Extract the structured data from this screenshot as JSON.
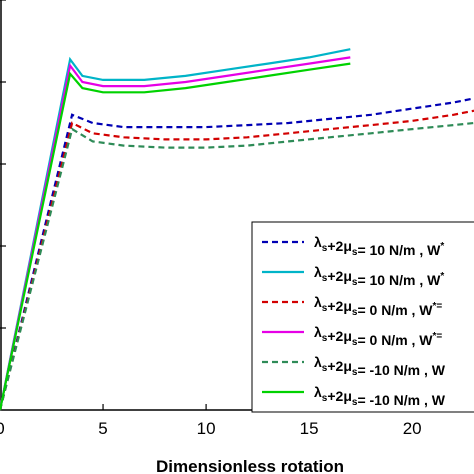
{
  "chart_data": {
    "type": "line",
    "title": "",
    "xlabel": "Dimensionless rotation",
    "ylabel": "",
    "xlim": [
      0,
      23
    ],
    "ylim": [
      0,
      1
    ],
    "grid": false,
    "legend_position": "right",
    "x_ticks": [
      {
        "value": 0,
        "label": "0"
      },
      {
        "value": 5,
        "label": "5"
      },
      {
        "value": 10,
        "label": "10"
      },
      {
        "value": 15,
        "label": "15"
      },
      {
        "value": 20,
        "label": "20"
      }
    ],
    "series": [
      {
        "name": "λs+2μs = 10 N/m , W*",
        "legend_main": "λ",
        "legend_sub1": "s",
        "legend_mid": "+2μ",
        "legend_sub2": "s",
        "legend_rest": "= 10 N/m , W",
        "legend_sup": "*",
        "color": "#0000b4",
        "dash": true,
        "x": [
          0,
          3.5,
          4.5,
          6,
          8,
          10,
          12,
          14,
          16,
          18,
          20,
          22,
          23
        ],
        "y": [
          0,
          0.72,
          0.7,
          0.69,
          0.69,
          0.69,
          0.695,
          0.7,
          0.71,
          0.72,
          0.735,
          0.75,
          0.76
        ]
      },
      {
        "name": "λs+2μs = 10 N/m , W*",
        "legend_main": "λ",
        "legend_sub1": "s",
        "legend_mid": "+2μ",
        "legend_sub2": "s",
        "legend_rest": "= 10 N/m , W",
        "legend_sup": "*",
        "color": "#00b4c8",
        "dash": false,
        "x": [
          0,
          3.4,
          4,
          5,
          7,
          9,
          11,
          13,
          15,
          17
        ],
        "y": [
          0,
          0.855,
          0.815,
          0.805,
          0.805,
          0.815,
          0.83,
          0.845,
          0.86,
          0.88
        ]
      },
      {
        "name": "λs+2μs = 0 N/m , W*=",
        "legend_main": "λ",
        "legend_sub1": "s",
        "legend_mid": "+2μ",
        "legend_sub2": "s",
        "legend_rest": "= 0 N/m , W",
        "legend_sup": "*=",
        "color": "#d20000",
        "dash": true,
        "x": [
          0,
          3.5,
          4.5,
          6,
          8,
          10,
          12,
          14,
          16,
          18,
          20,
          22,
          23
        ],
        "y": [
          0,
          0.7,
          0.675,
          0.665,
          0.66,
          0.66,
          0.665,
          0.675,
          0.685,
          0.695,
          0.705,
          0.72,
          0.73
        ]
      },
      {
        "name": "λs+2μs = 0 N/m , W*=",
        "legend_main": "λ",
        "legend_sub1": "s",
        "legend_mid": "+2μ",
        "legend_sub2": "s",
        "legend_rest": "= 0 N/m , W",
        "legend_sup": "*=",
        "color": "#e600e6",
        "dash": false,
        "x": [
          0,
          3.4,
          4,
          5,
          7,
          9,
          11,
          13,
          15,
          17
        ],
        "y": [
          0,
          0.84,
          0.8,
          0.79,
          0.79,
          0.8,
          0.815,
          0.83,
          0.845,
          0.86
        ]
      },
      {
        "name": "λs+2μs = -10 N/m , W",
        "legend_main": "λ",
        "legend_sub1": "s",
        "legend_mid": "+2μ",
        "legend_sub2": "s",
        "legend_rest": "= -10 N/m , W",
        "legend_sup": "",
        "color": "#2e8b57",
        "dash": true,
        "x": [
          0,
          3.5,
          4.5,
          6,
          8,
          10,
          12,
          14,
          16,
          18,
          20,
          22,
          23
        ],
        "y": [
          0,
          0.685,
          0.655,
          0.645,
          0.64,
          0.64,
          0.645,
          0.655,
          0.665,
          0.675,
          0.685,
          0.695,
          0.7
        ]
      },
      {
        "name": "λs+2μs = -10 N/m , W",
        "legend_main": "λ",
        "legend_sub1": "s",
        "legend_mid": "+2μ",
        "legend_sub2": "s",
        "legend_rest": "= -10 N/m , W",
        "legend_sup": "",
        "color": "#00d200",
        "dash": false,
        "x": [
          0,
          3.4,
          4,
          5,
          7,
          9,
          11,
          13,
          15,
          17
        ],
        "y": [
          0,
          0.82,
          0.785,
          0.775,
          0.775,
          0.785,
          0.8,
          0.815,
          0.83,
          0.845
        ]
      }
    ]
  }
}
